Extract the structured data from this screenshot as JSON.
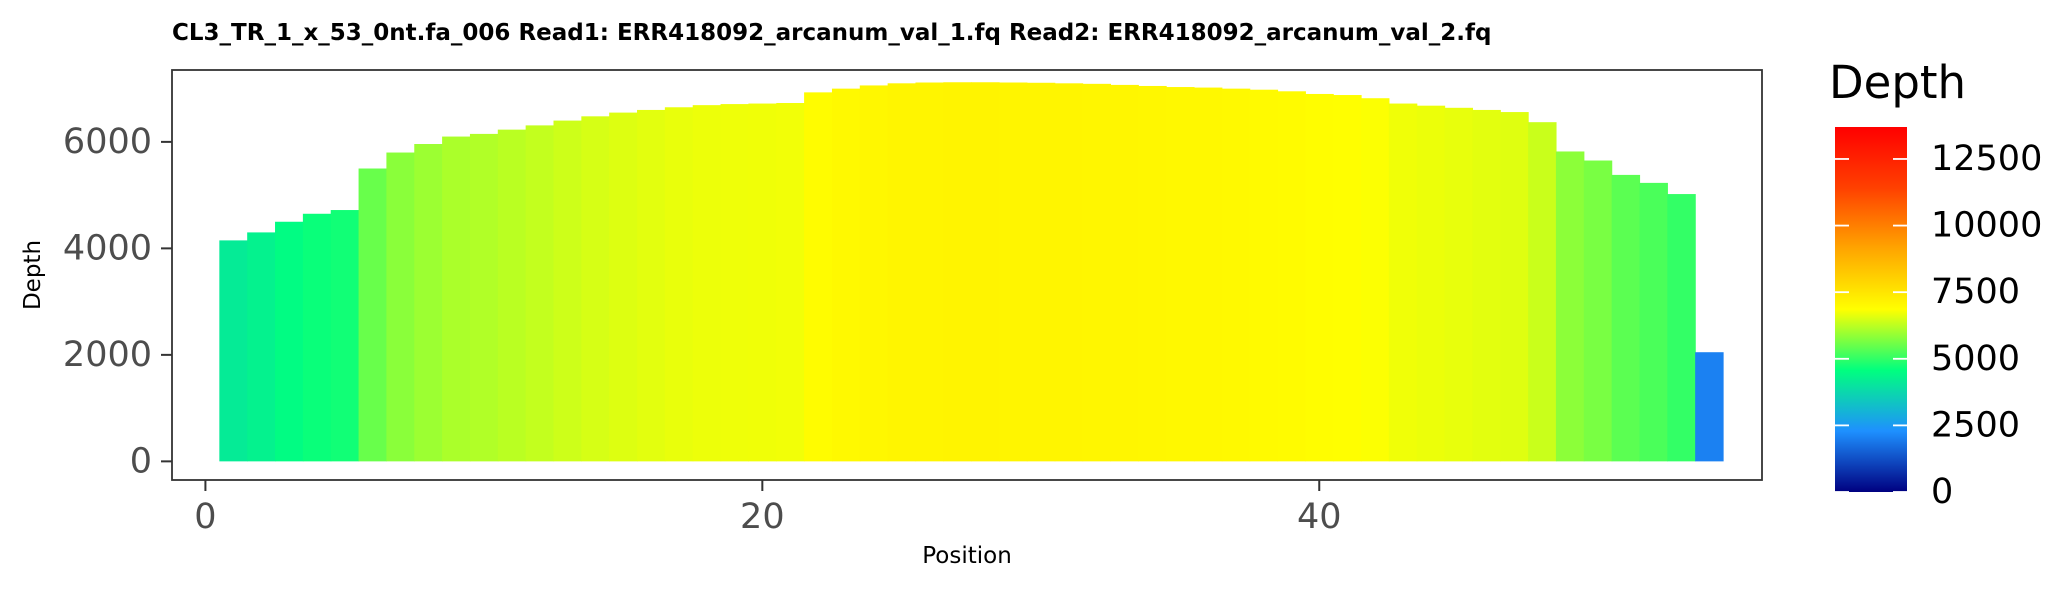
{
  "chart_data": {
    "type": "bar",
    "title": "CL3_TR_1_x_53_0nt.fa_006   Read1: ERR418092_arcanum_val_1.fq   Read2: ERR418092_arcanum_val_2.fq",
    "xlabel": "Position",
    "ylabel": "Depth",
    "xlim": [
      -1.2,
      55.9
    ],
    "ylim": [
      -350,
      7350
    ],
    "x_ticks": [
      0,
      20,
      40
    ],
    "x_tick_labels": [
      "0",
      "20",
      "40"
    ],
    "y_ticks": [
      0,
      2000,
      4000,
      6000
    ],
    "y_tick_labels": [
      "0",
      "2000",
      "4000",
      "6000"
    ],
    "grid": false,
    "legend": {
      "title": "Depth",
      "position": "right",
      "range": [
        0,
        13700
      ],
      "breaks": [
        0,
        2500,
        5000,
        7500,
        10000,
        12500
      ],
      "labels": [
        "0",
        "2500",
        "5000",
        "7500",
        "10000",
        "12500"
      ],
      "colors": [
        "#000080",
        "#1e90ff",
        "#00ff7f",
        "#ffff00",
        "#ffa500",
        "#ff4000",
        "#ff0000"
      ]
    },
    "x": [
      1,
      2,
      3,
      4,
      5,
      6,
      7,
      8,
      9,
      10,
      11,
      12,
      13,
      14,
      15,
      16,
      17,
      18,
      19,
      20,
      21,
      22,
      23,
      24,
      25,
      26,
      27,
      28,
      29,
      30,
      31,
      32,
      33,
      34,
      35,
      36,
      37,
      38,
      39,
      40,
      41,
      42,
      43,
      44,
      45,
      46,
      47,
      48,
      49,
      50,
      51,
      52,
      53,
      54
    ],
    "values": [
      4150,
      4300,
      4500,
      4650,
      4720,
      5500,
      5800,
      5960,
      6100,
      6150,
      6230,
      6310,
      6400,
      6480,
      6550,
      6600,
      6650,
      6690,
      6710,
      6720,
      6730,
      6930,
      7000,
      7060,
      7100,
      7115,
      7120,
      7120,
      7115,
      7110,
      7100,
      7090,
      7070,
      7050,
      7030,
      7020,
      7000,
      6980,
      6950,
      6900,
      6880,
      6820,
      6720,
      6680,
      6640,
      6600,
      6560,
      6370,
      5820,
      5650,
      5380,
      5230,
      5020,
      2050
    ]
  }
}
